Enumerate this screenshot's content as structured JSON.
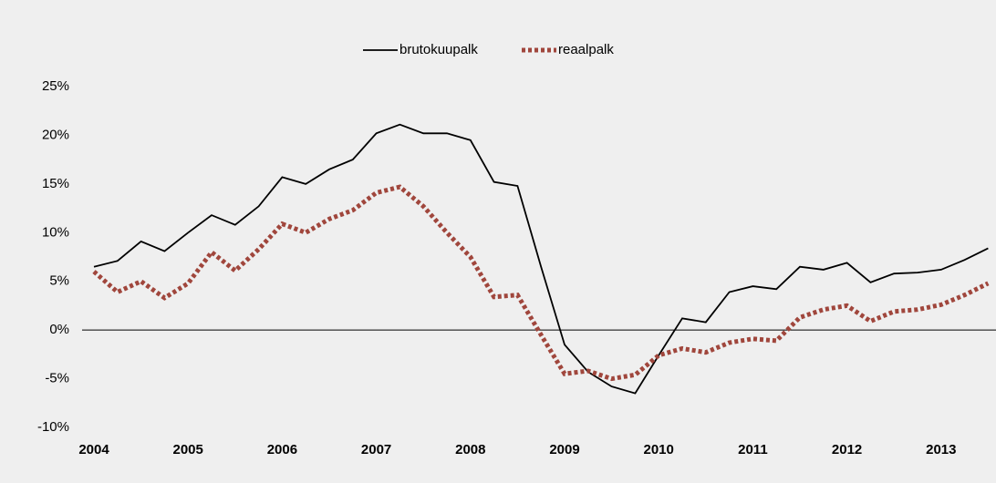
{
  "chart_data": {
    "type": "line",
    "categories": [
      "2004",
      null,
      null,
      null,
      "2005",
      null,
      null,
      null,
      "2006",
      null,
      null,
      null,
      "2007",
      null,
      null,
      null,
      "2008",
      null,
      null,
      null,
      "2009",
      null,
      null,
      null,
      "2010",
      null,
      null,
      null,
      "2011",
      null,
      null,
      null,
      "2012",
      null,
      null,
      null,
      "2013",
      null,
      null
    ],
    "series": [
      {
        "name": "brutokuupalk",
        "color": "#000000",
        "dash": "solid",
        "values": [
          6.5,
          7.1,
          9.1,
          8.1,
          10.0,
          11.8,
          10.8,
          12.7,
          15.7,
          15.0,
          16.5,
          17.5,
          20.2,
          21.1,
          20.2,
          20.2,
          19.5,
          15.2,
          14.8,
          6.5,
          -1.5,
          -4.3,
          -5.8,
          -6.5,
          -2.6,
          1.2,
          0.8,
          3.9,
          4.5,
          4.2,
          6.5,
          6.2,
          6.9,
          4.9,
          5.8,
          5.9,
          6.2,
          7.2,
          8.4
        ]
      },
      {
        "name": "reaalpalk",
        "color": "#a0463c",
        "dash": "dotted",
        "values": [
          6.0,
          3.9,
          5.0,
          3.3,
          4.8,
          8.0,
          6.1,
          8.3,
          10.9,
          10.0,
          11.4,
          12.3,
          14.1,
          14.7,
          12.7,
          10.0,
          7.5,
          3.4,
          3.6,
          -0.5,
          -4.5,
          -4.2,
          -5.0,
          -4.6,
          -2.6,
          -1.9,
          -2.3,
          -1.3,
          -0.9,
          -1.1,
          1.3,
          2.1,
          2.5,
          0.9,
          1.9,
          2.1,
          2.6,
          3.6,
          4.8
        ]
      }
    ],
    "ylim": [
      -10,
      25
    ],
    "yticks": [
      {
        "value": -10,
        "label": "-10%"
      },
      {
        "value": -5,
        "label": "-5%"
      },
      {
        "value": 0,
        "label": "0%"
      },
      {
        "value": 5,
        "label": "5%"
      },
      {
        "value": 10,
        "label": "10%"
      },
      {
        "value": 15,
        "label": "15%"
      },
      {
        "value": 20,
        "label": "20%"
      },
      {
        "value": 25,
        "label": "25%"
      }
    ],
    "legend": "top"
  }
}
